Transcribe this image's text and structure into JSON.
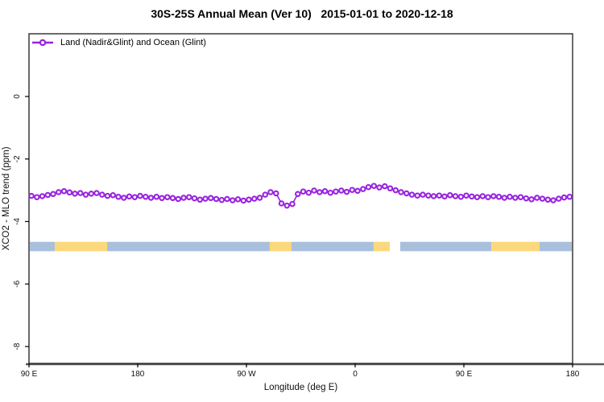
{
  "title": "30S-25S Annual Mean (Ver 10)   2015-01-01 to 2020-12-18",
  "legend": {
    "label": "Land (Nadir&Glint) and Ocean (Glint)"
  },
  "chart_data": {
    "type": "line",
    "title": "30S-25S Annual Mean (Ver 10)   2015-01-01 to 2020-12-18",
    "xlabel": "Longitude (deg E)",
    "ylabel": "XCO2 - MLO trend (ppm)",
    "legend_position": "top-left-inside",
    "grid": false,
    "x_axis": {
      "note": "longitude shown continuously from 90E eastward around the globe to 180",
      "domain_deg": [
        90,
        540
      ],
      "ticks": [
        {
          "deg": 90,
          "label": "90 E"
        },
        {
          "deg": 180,
          "label": "180"
        },
        {
          "deg": 270,
          "label": "90 W"
        },
        {
          "deg": 360,
          "label": "0"
        },
        {
          "deg": 450,
          "label": "90 E"
        },
        {
          "deg": 540,
          "label": "180"
        }
      ]
    },
    "y_axis": {
      "ticks": [
        {
          "value": 0,
          "label": "0"
        },
        {
          "value": -2,
          "label": "-2"
        },
        {
          "value": -4,
          "label": "-4"
        },
        {
          "value": -6,
          "label": "-6"
        },
        {
          "value": -8,
          "label": "-8"
        }
      ],
      "tick_label_rotation_deg": -90
    },
    "series": [
      {
        "name": "Land (Nadir&Glint) and Ocean (Glint)",
        "color": "#9823e0",
        "marker": "open-circle",
        "x_start_deg": 92,
        "x_step_deg": 4.5,
        "values": [
          -3.18,
          -3.22,
          -3.19,
          -3.15,
          -3.12,
          -3.06,
          -3.03,
          -3.07,
          -3.11,
          -3.09,
          -3.14,
          -3.11,
          -3.09,
          -3.14,
          -3.18,
          -3.16,
          -3.21,
          -3.24,
          -3.2,
          -3.22,
          -3.18,
          -3.21,
          -3.24,
          -3.21,
          -3.25,
          -3.22,
          -3.25,
          -3.28,
          -3.24,
          -3.22,
          -3.26,
          -3.3,
          -3.27,
          -3.25,
          -3.28,
          -3.31,
          -3.28,
          -3.32,
          -3.29,
          -3.33,
          -3.3,
          -3.27,
          -3.24,
          -3.14,
          -3.06,
          -3.1,
          -3.42,
          -3.49,
          -3.44,
          -3.12,
          -3.04,
          -3.08,
          -3.01,
          -3.06,
          -3.03,
          -3.08,
          -3.04,
          -3.01,
          -3.05,
          -2.99,
          -3.02,
          -2.96,
          -2.9,
          -2.86,
          -2.91,
          -2.87,
          -2.94,
          -3.0,
          -3.06,
          -3.1,
          -3.14,
          -3.17,
          -3.14,
          -3.17,
          -3.19,
          -3.17,
          -3.2,
          -3.16,
          -3.19,
          -3.21,
          -3.17,
          -3.2,
          -3.22,
          -3.19,
          -3.22,
          -3.19,
          -3.21,
          -3.24,
          -3.21,
          -3.24,
          -3.22,
          -3.26,
          -3.29,
          -3.24,
          -3.27,
          -3.3,
          -3.32,
          -3.27,
          -3.23,
          -3.21
        ]
      }
    ],
    "surface_band": {
      "description": "land/ocean indicator strip",
      "value_top": -4.65,
      "value_bottom": -4.95,
      "colors": {
        "ocean": "#a9c0dc",
        "land": "#fbd87c"
      },
      "segments": [
        {
          "type": "ocean",
          "from_deg": 90.7,
          "to_deg": 111.3
        },
        {
          "type": "land",
          "from_deg": 111.3,
          "to_deg": 154.7
        },
        {
          "type": "ocean",
          "from_deg": 154.7,
          "to_deg": 289.3
        },
        {
          "type": "land",
          "from_deg": 289.3,
          "to_deg": 307.3
        },
        {
          "type": "ocean",
          "from_deg": 307.3,
          "to_deg": 375.3
        },
        {
          "type": "land",
          "from_deg": 375.3,
          "to_deg": 388.7
        },
        {
          "type": "ocean",
          "from_deg": 397.3,
          "to_deg": 472.7
        },
        {
          "type": "land",
          "from_deg": 472.7,
          "to_deg": 512.7
        },
        {
          "type": "ocean",
          "from_deg": 512.7,
          "to_deg": 539.3
        }
      ]
    },
    "style": {
      "box_color": "#2b2b2b",
      "baseline_color": "#5a5a5a",
      "tick_label_color": "#111111"
    }
  }
}
